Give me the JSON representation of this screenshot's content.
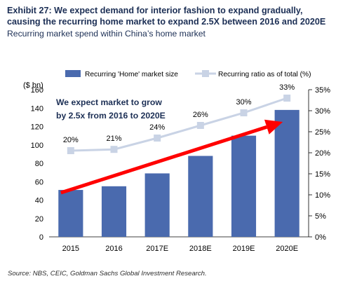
{
  "header": {
    "title_line1": "Exhibit 27: We expect demand for interior fashion to expand gradually,",
    "title_line2": "causing the recurring home market to expand 2.5X between 2016 and 2020E",
    "subtitle": "Recurring market spend within China’s home market"
  },
  "footer": {
    "source": "Source: NBS, CEIC, Goldman Sachs Global Investment Research."
  },
  "colors": {
    "bar": "#4a6aae",
    "ratio_line": "#c9d3e5",
    "arrow": "#ff0000",
    "title": "#1c2f55"
  },
  "chart_data": {
    "type": "bar",
    "categories": [
      "2015",
      "2016",
      "2017E",
      "2018E",
      "2019E",
      "2020E"
    ],
    "series": [
      {
        "name": "Recurring 'Home' market size",
        "type": "bar",
        "axis": "left",
        "values": [
          51,
          55,
          69,
          88,
          110,
          138
        ]
      },
      {
        "name": "Recurring ratio as of total (%)",
        "type": "line",
        "axis": "right",
        "values": [
          20.5,
          20.8,
          23.5,
          26.5,
          29.5,
          33
        ],
        "labels": [
          "20%",
          "21%",
          "24%",
          "26%",
          "30%",
          "33%"
        ]
      }
    ],
    "ylabel": "($ bn)",
    "ylim": [
      0,
      160
    ],
    "yticks": [
      0,
      20,
      40,
      60,
      80,
      100,
      120,
      140,
      160
    ],
    "y2lim": [
      0,
      35
    ],
    "y2ticks": [
      "0%",
      "5%",
      "10%",
      "15%",
      "20%",
      "25%",
      "30%",
      "35%"
    ],
    "legend_position": "top",
    "grid": false,
    "annotation": {
      "line1": "We expect market to grow",
      "line2": "by 2.5x from 2016 to 2020E"
    },
    "arrow": {
      "from_category": "2015",
      "from_value": 48,
      "to_category": "2020E",
      "to_value": 125
    }
  }
}
